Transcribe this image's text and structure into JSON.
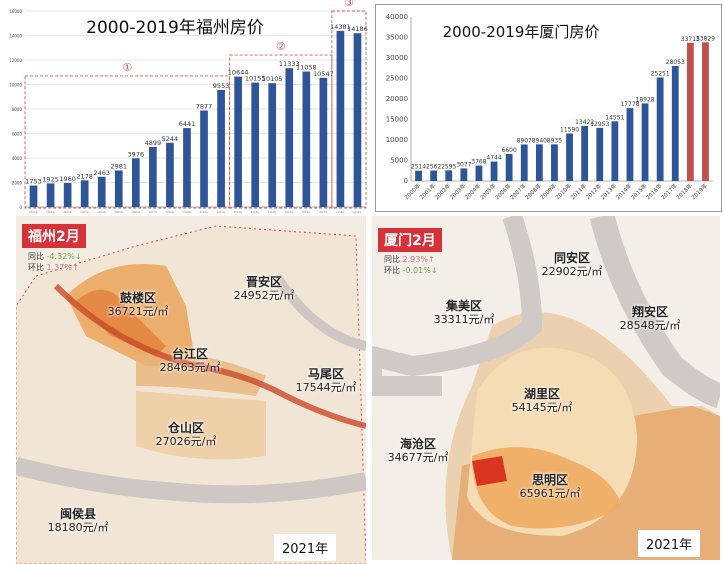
{
  "chart_data": [
    {
      "type": "bar",
      "title": "2000-2019年福州房价",
      "categories": [
        "2000年",
        "2001年",
        "2002年",
        "2003年",
        "2004年",
        "2005年",
        "2006年",
        "2007年",
        "2008年",
        "2009年",
        "2010年",
        "2011年",
        "2012年",
        "2013年",
        "2014年",
        "2015年",
        "2016年",
        "2017年",
        "2018年",
        "2019年"
      ],
      "values": [
        1753,
        1925,
        1960,
        2178,
        2463,
        2981,
        3976,
        4899,
        5244,
        6441,
        7877,
        9553,
        10644,
        10155,
        10105,
        11333,
        11058,
        10547,
        14381,
        14186
      ],
      "ylim": [
        0,
        16000
      ],
      "yticks": [
        0,
        2000,
        4000,
        6000,
        8000,
        10000,
        12000,
        14000,
        16000
      ],
      "grid": true,
      "bar_color": "#2e5597",
      "annotations": [
        {
          "label": "①",
          "from": 0,
          "to": 11
        },
        {
          "label": "②",
          "from": 12,
          "to": 17
        },
        {
          "label": "③",
          "from": 18,
          "to": 19
        }
      ],
      "annotation_color": "#d9534f"
    },
    {
      "type": "bar",
      "title": "2000-2019年厦门房价",
      "categories": [
        "2000年",
        "2001年",
        "2002年",
        "2003年",
        "2004年",
        "2005年",
        "2006年",
        "2007年",
        "2008年",
        "2009年",
        "2010年",
        "2011年",
        "2012年",
        "2013年",
        "2014年",
        "2015年",
        "2016年",
        "2017年",
        "2018年",
        "2019年"
      ],
      "values": [
        2514,
        2562,
        2595,
        3077,
        3768,
        4744,
        6600,
        8907,
        8940,
        8935,
        11590,
        13422,
        12953,
        14551,
        17778,
        18928,
        25251,
        28053,
        33715,
        33829
      ],
      "ylim": [
        0,
        40000
      ],
      "yticks": [
        0,
        5000,
        10000,
        15000,
        20000,
        25000,
        30000,
        35000,
        40000
      ],
      "grid": false,
      "bar_color": "#2e5597",
      "highlight_color": "#c0504d",
      "highlight": [
        18,
        19
      ]
    }
  ],
  "fuzhou_map": {
    "badge": "福州2月",
    "yoy_label": "同比",
    "yoy": "-4.32%↓",
    "mom_label": "环比",
    "mom": "1.37%↑",
    "districts": [
      {
        "name": "鼓楼区",
        "price": "36721元/㎡"
      },
      {
        "name": "晋安区",
        "price": "24952元/㎡"
      },
      {
        "name": "台江区",
        "price": "28463元/㎡"
      },
      {
        "name": "马尾区",
        "price": "17544元/㎡"
      },
      {
        "name": "仓山区",
        "price": "27026元/㎡"
      },
      {
        "name": "闽侯县",
        "price": "18180元/㎡"
      }
    ],
    "year": "2021年"
  },
  "xiamen_map": {
    "badge": "厦门2月",
    "yoy_label": "同比",
    "yoy": "2.93%↑",
    "mom_label": "环比",
    "mom": "-0.01%↓",
    "districts": [
      {
        "name": "同安区",
        "price": "22902元/㎡"
      },
      {
        "name": "集美区",
        "price": "33311元/㎡"
      },
      {
        "name": "翔安区",
        "price": "28548元/㎡"
      },
      {
        "name": "湖里区",
        "price": "54145元/㎡"
      },
      {
        "name": "海沧区",
        "price": "34677元/㎡"
      },
      {
        "name": "思明区",
        "price": "65961元/㎡"
      }
    ],
    "year": "2021年"
  }
}
